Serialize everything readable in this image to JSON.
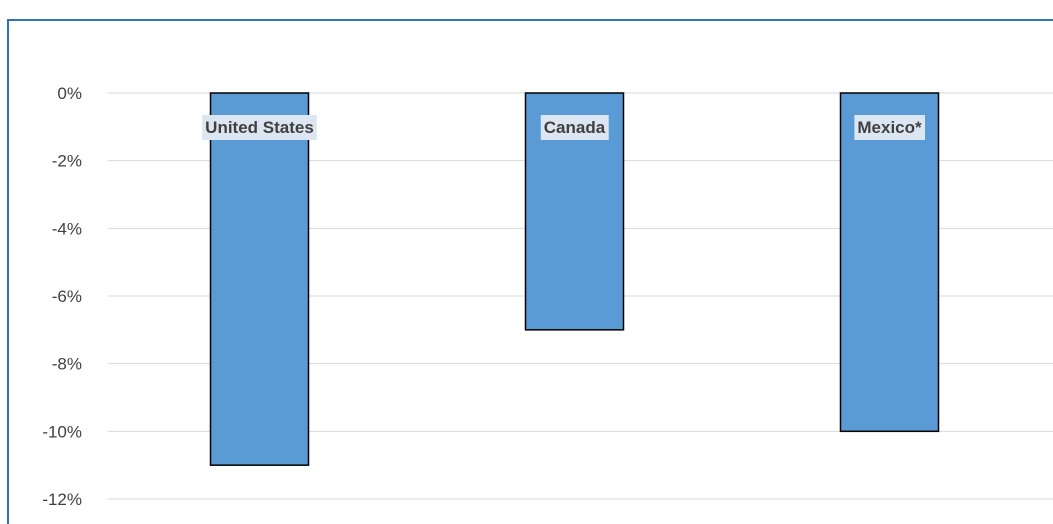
{
  "chart_data": {
    "type": "bar",
    "title": "",
    "xlabel": "",
    "ylabel": "",
    "categories": [
      "United States",
      "Canada",
      "Mexico*"
    ],
    "values": [
      -11,
      -7,
      -10
    ],
    "ylim": [
      -12,
      0
    ],
    "y_ticks": [
      0,
      -2,
      -4,
      -6,
      -8,
      -10,
      -12
    ],
    "y_tick_labels": [
      "0%",
      "-2%",
      "-4%",
      "-6%",
      "-8%",
      "-10%",
      "-12%"
    ],
    "grid": true,
    "legend": "none",
    "colors": {
      "bar": "#5b9bd5",
      "bar_outline": "#000000",
      "gridline": "#d9d9d9",
      "frame": "#2e74b5",
      "label_background": "#dce6f2",
      "title": "#2e74b5"
    }
  }
}
